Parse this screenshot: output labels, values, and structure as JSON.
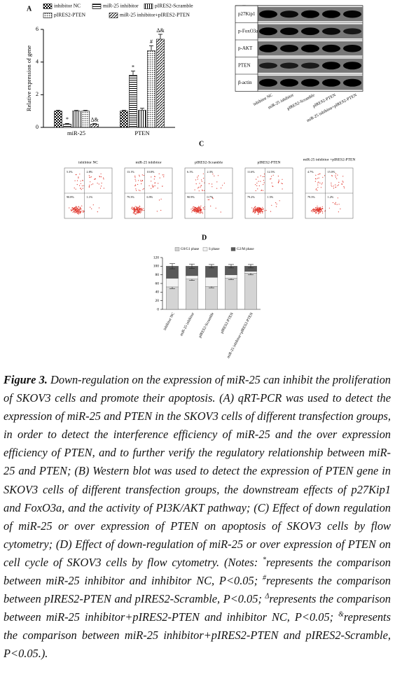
{
  "chart_data": [
    {
      "panel": "A",
      "type": "bar",
      "ylabel": "Relative expression of gene",
      "categories": [
        "miR-25",
        "PTEN"
      ],
      "series": [
        {
          "name": "inhibitor NC",
          "color": "#000000",
          "pattern": "checker",
          "values": [
            1.0,
            1.0
          ],
          "errors": [
            0.05,
            0.05
          ]
        },
        {
          "name": "miR-25 inhibitor",
          "color": "#000000",
          "pattern": "hlines",
          "values": [
            0.2,
            3.2
          ],
          "errors": [
            0.04,
            0.25
          ],
          "annotations": [
            "*",
            "*"
          ]
        },
        {
          "name": "pIRES2-Scramble",
          "color": "#000000",
          "pattern": "vlines",
          "values": [
            1.0,
            1.05
          ],
          "errors": [
            0.04,
            0.12
          ]
        },
        {
          "name": "pIRES2-PTEN",
          "color": "#000000",
          "pattern": "dots",
          "values": [
            1.0,
            4.7
          ],
          "errors": [
            0.04,
            0.3
          ],
          "annotations": [
            null,
            "#"
          ]
        },
        {
          "name": "miR-25 inhibitor+pIRES2-PTEN",
          "color": "#000000",
          "pattern": "diag",
          "values": [
            0.2,
            5.4
          ],
          "errors": [
            0.03,
            0.3
          ],
          "annotations": [
            "Δ&",
            "Δ&"
          ]
        }
      ],
      "ylim": [
        0,
        6
      ],
      "yticks": [
        0,
        2,
        4,
        6
      ]
    },
    {
      "panel": "D",
      "type": "stacked_bar",
      "categories": [
        "inhibitor NC",
        "miR-25 inhibitor",
        "pIRES2-Scramble",
        "pIRES2-PTEN",
        "miR-25 inhibitor+pIRES2-PTEN"
      ],
      "series": [
        {
          "name": "G0/G1 phase",
          "color": "#d4d4d4",
          "values": [
            52,
            70,
            53,
            72,
            84
          ],
          "errors": [
            4,
            3,
            3,
            3,
            4
          ]
        },
        {
          "name": "S phase",
          "color": "#f2f2f2",
          "values": [
            20,
            8,
            21,
            8,
            4
          ]
        },
        {
          "name": "G2/M phase",
          "color": "#5a5a5a",
          "values": [
            28,
            22,
            26,
            20,
            12
          ],
          "errors": [
            6,
            5,
            4,
            4,
            4
          ]
        }
      ],
      "ylim": [
        0,
        120
      ],
      "yticks": [
        0,
        20,
        40,
        60,
        80,
        100,
        120
      ]
    }
  ],
  "blot": {
    "panel": "B",
    "proteins": [
      "p27Kip1",
      "p-FoxO3a",
      "p-AKT",
      "PTEN",
      "β-actin"
    ],
    "lanes": [
      "inhibitor NC",
      "miR-25 inhibitor",
      "pIRES2-Scramble",
      "pIRES2-PTEN",
      "miR-25 inhibitor+pIRES2-PTEN"
    ]
  },
  "flow": {
    "panel": "C",
    "plots": [
      {
        "title": "inhibitor NC",
        "quadrants": [
          "5.3%",
          "2.8%",
          "90.8%",
          "1.1%"
        ]
      },
      {
        "title": "miR-25 inhibitor",
        "quadrants": [
          "13.1%",
          "10.8%",
          "79.3%",
          "6.9%"
        ]
      },
      {
        "title": "pIRES2-Scramble",
        "quadrants": [
          "6.1%",
          "2.3%",
          "90.9%",
          "0.7%"
        ]
      },
      {
        "title": "pIRES2-PTEN",
        "quadrants": [
          "11.6%",
          "12.5%",
          "79.2%",
          "1.5%"
        ]
      },
      {
        "title": "miR-25 inhibitor +pIRES2-PTEN",
        "quadrants": [
          "4.7%",
          "15.0%",
          "79.3%",
          "1.2%"
        ]
      }
    ]
  },
  "caption": {
    "label": "Figure 3.",
    "text": "Down-regulation on the expression of miR-25 can inhibit the proliferation of SKOV3 cells and promote their apoptosis. (A) qRT-PCR was used to detect the expression of miR-25 and PTEN in the SKOV3 cells of different transfection groups, in order to detect the interference efficiency of miR-25 and the over expression efficiency of PTEN, and to further verify the regulatory relationship between miR-25 and PTEN; (B) Western blot was used to detect the expression of PTEN gene in SKOV3 cells of different transfection groups, the downstream effects of p27Kip1 and FoxO3a, and the activity of PI3K/AKT pathway; (C) Effect of down regulation of miR-25 or over expression of PTEN on apoptosis of SKOV3 cells by flow cytometry; (D) Effect of down-regulation of miR-25 or over expression of PTEN on cell cycle of SKOV3 cells by flow cytometry.",
    "notes_open": "(Notes:",
    "notes": [
      {
        "symbol": "*",
        "text": "represents the comparison between miR-25 inhibitor and inhibitor NC, P<0.05;"
      },
      {
        "symbol": "#",
        "text": "represents the comparison between pIRES2-PTEN and pIRES2-Scramble, P<0.05;"
      },
      {
        "symbol": "Δ",
        "text": "represents the comparison between miR-25 inhibitor+pIRES2-PTEN and inhibitor NC, P<0.05;"
      },
      {
        "symbol": "&",
        "text": "represents the comparison between miR-25 inhibitor+pIRES2-PTEN and pIRES2-Scramble, P<0.05.)."
      }
    ]
  }
}
